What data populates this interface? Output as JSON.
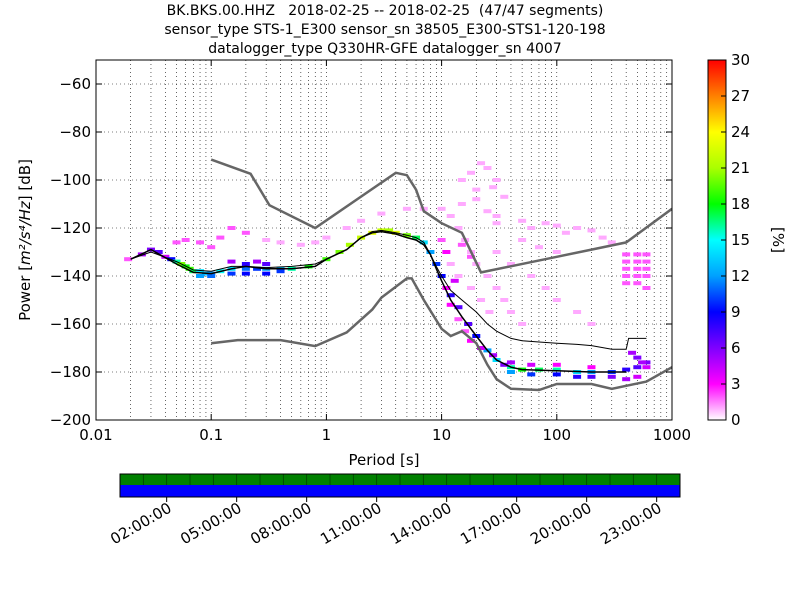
{
  "title_lines": [
    "BK.BKS.00.HHZ   2018-02-25 -- 2018-02-25  (47/47 segments)",
    "sensor_type STS-1_E300 sensor_sn 38505_E300-STS1-120-198",
    "datalogger_type Q330HR-GFE datalogger_sn 4007"
  ],
  "chart_data": {
    "type": "heatmap",
    "xlabel": "Period [s]",
    "ylabel": "Power [m²/s⁴/Hz] [dB]",
    "ylabel_prefix": "Power [",
    "ylabel_units": "m²/s⁴/Hz",
    "ylabel_suffix": "] [dB]",
    "x_scale": "log",
    "xlim": [
      0.01,
      1000
    ],
    "ylim": [
      -200,
      -50
    ],
    "x_ticks": [
      0.01,
      0.1,
      1,
      10,
      100,
      1000
    ],
    "x_tick_labels": [
      "0.01",
      "0.1",
      "1",
      "10",
      "100",
      "1000"
    ],
    "y_ticks": [
      -200,
      -180,
      -160,
      -140,
      -120,
      -100,
      -80,
      -60
    ],
    "y_tick_labels": [
      "−200",
      "−180",
      "−160",
      "−140",
      "−120",
      "−100",
      "−80",
      "−60"
    ],
    "grid": true,
    "colorbar": {
      "label": "[%]",
      "min": 0,
      "max": 30,
      "ticks": [
        0,
        3,
        6,
        9,
        12,
        15,
        18,
        21,
        24,
        27,
        30
      ],
      "colors": [
        "#ffffff",
        "#ff00ff",
        "#7f00ff",
        "#0000ff",
        "#00a0ff",
        "#00ffff",
        "#00ff00",
        "#aaff00",
        "#ffff00",
        "#ff8000",
        "#ff0000"
      ]
    },
    "mean_curve": [
      [
        0.02,
        -133
      ],
      [
        0.03,
        -130
      ],
      [
        0.05,
        -134
      ],
      [
        0.07,
        -137.5
      ],
      [
        0.1,
        -138
      ],
      [
        0.15,
        -136
      ],
      [
        0.2,
        -136
      ],
      [
        0.3,
        -136.5
      ],
      [
        0.5,
        -136
      ],
      [
        0.8,
        -135
      ],
      [
        1,
        -133
      ],
      [
        1.5,
        -129
      ],
      [
        2,
        -124
      ],
      [
        2.5,
        -121.5
      ],
      [
        3,
        -121
      ],
      [
        4,
        -122
      ],
      [
        5,
        -123
      ],
      [
        6,
        -124
      ],
      [
        7,
        -126
      ],
      [
        8,
        -131
      ],
      [
        9,
        -136
      ],
      [
        10,
        -140
      ],
      [
        12,
        -146
      ],
      [
        15,
        -150
      ],
      [
        20,
        -155
      ],
      [
        25,
        -160
      ],
      [
        30,
        -163
      ],
      [
        40,
        -166
      ],
      [
        50,
        -167
      ],
      [
        70,
        -167.5
      ],
      [
        100,
        -168
      ],
      [
        150,
        -168.5
      ],
      [
        200,
        -169
      ],
      [
        300,
        -170.5
      ],
      [
        400,
        -170.5
      ],
      [
        420,
        -166
      ],
      [
        600,
        -166
      ]
    ],
    "mode_curve": [
      [
        0.02,
        -133
      ],
      [
        0.03,
        -129
      ],
      [
        0.05,
        -135
      ],
      [
        0.07,
        -138.5
      ],
      [
        0.1,
        -139
      ],
      [
        0.15,
        -137
      ],
      [
        0.2,
        -136
      ],
      [
        0.3,
        -137
      ],
      [
        0.5,
        -137
      ],
      [
        0.8,
        -136
      ],
      [
        1,
        -133
      ],
      [
        1.5,
        -129
      ],
      [
        2,
        -124
      ],
      [
        2.5,
        -122
      ],
      [
        3,
        -121.5
      ],
      [
        4,
        -122.5
      ],
      [
        5,
        -124
      ],
      [
        6,
        -125
      ],
      [
        7,
        -127
      ],
      [
        8,
        -131
      ],
      [
        9,
        -137
      ],
      [
        10,
        -142
      ],
      [
        12,
        -150
      ],
      [
        15,
        -157
      ],
      [
        20,
        -165
      ],
      [
        25,
        -171
      ],
      [
        30,
        -175
      ],
      [
        40,
        -178
      ],
      [
        50,
        -179
      ],
      [
        100,
        -179.5
      ],
      [
        200,
        -180
      ],
      [
        400,
        -180
      ]
    ],
    "nhnm": [
      [
        0.1,
        -91.5
      ],
      [
        0.22,
        -97.4
      ],
      [
        0.32,
        -110.5
      ],
      [
        0.8,
        -120
      ],
      [
        4,
        -97
      ],
      [
        5,
        -98
      ],
      [
        6,
        -104
      ],
      [
        7,
        -113
      ],
      [
        10,
        -118
      ],
      [
        15,
        -122
      ],
      [
        22,
        -138.5
      ],
      [
        100,
        -132
      ],
      [
        200,
        -129
      ],
      [
        400,
        -126
      ],
      [
        1000,
        -112
      ]
    ],
    "nlnm": [
      [
        0.1,
        -168
      ],
      [
        0.17,
        -166.7
      ],
      [
        0.4,
        -166.7
      ],
      [
        0.8,
        -169.2
      ],
      [
        1.5,
        -163.5
      ],
      [
        2.5,
        -154
      ],
      [
        3,
        -149
      ],
      [
        5,
        -141
      ],
      [
        5.5,
        -141
      ],
      [
        7,
        -150
      ],
      [
        10,
        -162
      ],
      [
        12,
        -165
      ],
      [
        15,
        -163
      ],
      [
        20,
        -168
      ],
      [
        25,
        -177
      ],
      [
        30,
        -183
      ],
      [
        40,
        -187
      ],
      [
        70,
        -187.5
      ],
      [
        100,
        -185
      ],
      [
        200,
        -185
      ],
      [
        300,
        -187
      ],
      [
        600,
        -184
      ],
      [
        1000,
        -178
      ]
    ],
    "psd_cells": [
      [
        0.019,
        -133,
        2
      ],
      [
        0.025,
        -131,
        5
      ],
      [
        0.03,
        -129,
        6
      ],
      [
        0.035,
        -130,
        7
      ],
      [
        0.04,
        -132,
        4
      ],
      [
        0.045,
        -133,
        9
      ],
      [
        0.05,
        -134,
        16
      ],
      [
        0.055,
        -135,
        20
      ],
      [
        0.06,
        -136,
        18
      ],
      [
        0.065,
        -137,
        19
      ],
      [
        0.07,
        -138,
        17
      ],
      [
        0.08,
        -138,
        14
      ],
      [
        0.09,
        -139,
        13
      ],
      [
        0.1,
        -139,
        12
      ],
      [
        0.12,
        -138,
        15
      ],
      [
        0.15,
        -137,
        14
      ],
      [
        0.2,
        -137,
        11
      ],
      [
        0.25,
        -137,
        10
      ],
      [
        0.3,
        -137,
        12
      ],
      [
        0.4,
        -137,
        13
      ],
      [
        0.5,
        -137,
        16
      ],
      [
        0.7,
        -136,
        18
      ],
      [
        1,
        -133,
        19
      ],
      [
        1.3,
        -130,
        20
      ],
      [
        1.6,
        -127,
        21
      ],
      [
        2,
        -124,
        22
      ],
      [
        2.5,
        -122,
        23
      ],
      [
        3,
        -121,
        22
      ],
      [
        3.5,
        -121,
        21
      ],
      [
        4,
        -122,
        23
      ],
      [
        5,
        -123,
        20
      ],
      [
        6,
        -124,
        17
      ],
      [
        7,
        -126,
        14
      ],
      [
        8,
        -130,
        12
      ],
      [
        9,
        -135,
        10
      ],
      [
        10,
        -140,
        9
      ],
      [
        12,
        -148,
        8
      ],
      [
        14,
        -153,
        7
      ],
      [
        17,
        -160,
        7
      ],
      [
        20,
        -165,
        9
      ],
      [
        25,
        -171,
        12
      ],
      [
        30,
        -175,
        14
      ],
      [
        40,
        -178,
        16
      ],
      [
        50,
        -179,
        18
      ],
      [
        70,
        -179,
        17
      ],
      [
        100,
        -179,
        16
      ],
      [
        150,
        -180,
        14
      ],
      [
        200,
        -180,
        12
      ],
      [
        300,
        -180,
        10
      ],
      [
        400,
        -179,
        8
      ],
      [
        500,
        -178,
        7
      ],
      [
        600,
        -176,
        6
      ],
      [
        0.08,
        -140,
        12
      ],
      [
        0.1,
        -140,
        11
      ],
      [
        0.15,
        -139,
        10
      ],
      [
        0.2,
        -139,
        9
      ],
      [
        0.3,
        -139,
        9
      ],
      [
        0.4,
        -138,
        10
      ],
      [
        0.2,
        -135,
        8
      ],
      [
        0.3,
        -135,
        7
      ],
      [
        0.15,
        -134,
        5
      ],
      [
        0.25,
        -134,
        5
      ],
      [
        40,
        -180,
        12
      ],
      [
        60,
        -181,
        10
      ],
      [
        100,
        -181,
        9
      ],
      [
        150,
        -182,
        8
      ],
      [
        200,
        -182,
        7
      ],
      [
        300,
        -182,
        6
      ],
      [
        400,
        -183,
        5
      ],
      [
        500,
        -182,
        4
      ],
      [
        40,
        -176,
        5
      ],
      [
        60,
        -177,
        4
      ],
      [
        100,
        -177,
        3
      ],
      [
        200,
        -178,
        3
      ],
      [
        0.05,
        -126,
        2
      ],
      [
        0.06,
        -125,
        2
      ],
      [
        0.08,
        -126,
        2
      ],
      [
        0.1,
        -128,
        2
      ],
      [
        0.12,
        -124,
        2
      ],
      [
        0.15,
        -120,
        2
      ],
      [
        0.2,
        -122,
        2
      ],
      [
        0.3,
        -125,
        1
      ],
      [
        0.4,
        -126,
        1
      ],
      [
        0.6,
        -127,
        1
      ],
      [
        0.8,
        -126,
        1
      ],
      [
        1,
        -124,
        1
      ],
      [
        1.5,
        -120,
        1
      ],
      [
        2,
        -117,
        1
      ],
      [
        3,
        -114,
        1
      ],
      [
        5,
        -112,
        1
      ],
      [
        7,
        -112,
        1
      ],
      [
        10,
        -112,
        1
      ],
      [
        15,
        -110,
        1
      ],
      [
        20,
        -108,
        1
      ],
      [
        25,
        -113,
        1
      ],
      [
        30,
        -115,
        1
      ],
      [
        50,
        -117,
        1
      ],
      [
        80,
        -118,
        1
      ],
      [
        100,
        -119,
        1
      ],
      [
        150,
        -120,
        1
      ],
      [
        200,
        -121,
        1
      ],
      [
        15,
        -100,
        1
      ],
      [
        18,
        -97,
        1
      ],
      [
        22,
        -93,
        1
      ],
      [
        25,
        -95,
        1
      ],
      [
        30,
        -100,
        1
      ],
      [
        20,
        -104,
        1
      ],
      [
        28,
        -103,
        1
      ],
      [
        35,
        -107,
        1
      ],
      [
        12,
        -115,
        1
      ],
      [
        14,
        -120,
        1
      ],
      [
        16,
        -125,
        1
      ],
      [
        18,
        -130,
        1
      ],
      [
        20,
        -135,
        1
      ],
      [
        25,
        -140,
        1
      ],
      [
        30,
        -145,
        1
      ],
      [
        35,
        -150,
        1
      ],
      [
        40,
        -155,
        1
      ],
      [
        50,
        -160,
        1
      ],
      [
        18,
        -145,
        1
      ],
      [
        22,
        -150,
        1
      ],
      [
        26,
        -155,
        1
      ],
      [
        12,
        -135,
        1
      ],
      [
        14,
        -140,
        1
      ],
      [
        30,
        -130,
        1
      ],
      [
        40,
        -135,
        1
      ],
      [
        60,
        -140,
        1
      ],
      [
        80,
        -145,
        1
      ],
      [
        100,
        -150,
        1
      ],
      [
        150,
        -155,
        1
      ],
      [
        200,
        -160,
        1
      ],
      [
        50,
        -125,
        1
      ],
      [
        70,
        -128,
        1
      ],
      [
        100,
        -130,
        1
      ],
      [
        400,
        -131,
        2
      ],
      [
        400,
        -134,
        2
      ],
      [
        400,
        -137,
        2
      ],
      [
        400,
        -140,
        2
      ],
      [
        400,
        -143,
        2
      ],
      [
        500,
        -131,
        2
      ],
      [
        500,
        -134,
        2
      ],
      [
        500,
        -137,
        2
      ],
      [
        500,
        -140,
        2
      ],
      [
        500,
        -143,
        2
      ],
      [
        600,
        -131,
        2
      ],
      [
        600,
        -134,
        2
      ],
      [
        600,
        -137,
        2
      ],
      [
        600,
        -140,
        2
      ],
      [
        600,
        -145,
        2
      ],
      [
        450,
        -172,
        5
      ],
      [
        500,
        -174,
        6
      ],
      [
        550,
        -176,
        5
      ],
      [
        600,
        -178,
        4
      ],
      [
        30,
        -118,
        1
      ],
      [
        60,
        -120,
        1
      ],
      [
        120,
        -122,
        1
      ],
      [
        250,
        -124,
        1
      ],
      [
        300,
        -126,
        1
      ],
      [
        15,
        -127,
        2
      ],
      [
        18,
        -132,
        2
      ],
      [
        10,
        -125,
        2
      ],
      [
        11,
        -130,
        3
      ],
      [
        13,
        -142,
        4
      ],
      [
        11,
        -145,
        3
      ],
      [
        12,
        -152,
        3
      ],
      [
        14,
        -158,
        2
      ],
      [
        16,
        -163,
        2
      ],
      [
        18,
        -167,
        3
      ],
      [
        22,
        -170,
        4
      ],
      [
        28,
        -173,
        5
      ],
      [
        35,
        -177,
        6
      ]
    ]
  },
  "time_axis": {
    "tick_labels": [
      "02:00:00",
      "05:00:00",
      "08:00:00",
      "11:00:00",
      "14:00:00",
      "17:00:00",
      "20:00:00",
      "23:00:00"
    ],
    "tick_hours": [
      2,
      5,
      8,
      11,
      14,
      17,
      20,
      23
    ],
    "range_hours": [
      0,
      24
    ],
    "segment_hours": [
      0,
      1,
      2,
      3,
      4,
      5,
      6,
      7,
      8,
      9,
      10,
      11,
      12,
      13,
      14,
      15,
      16,
      17,
      18,
      19,
      20,
      21,
      22,
      23
    ],
    "top_color": "#008000",
    "bottom_color": "#0000ff"
  },
  "colors": {
    "noise_model": "#666666",
    "mean_curve": "#000000",
    "mode_curve": "#000000"
  }
}
